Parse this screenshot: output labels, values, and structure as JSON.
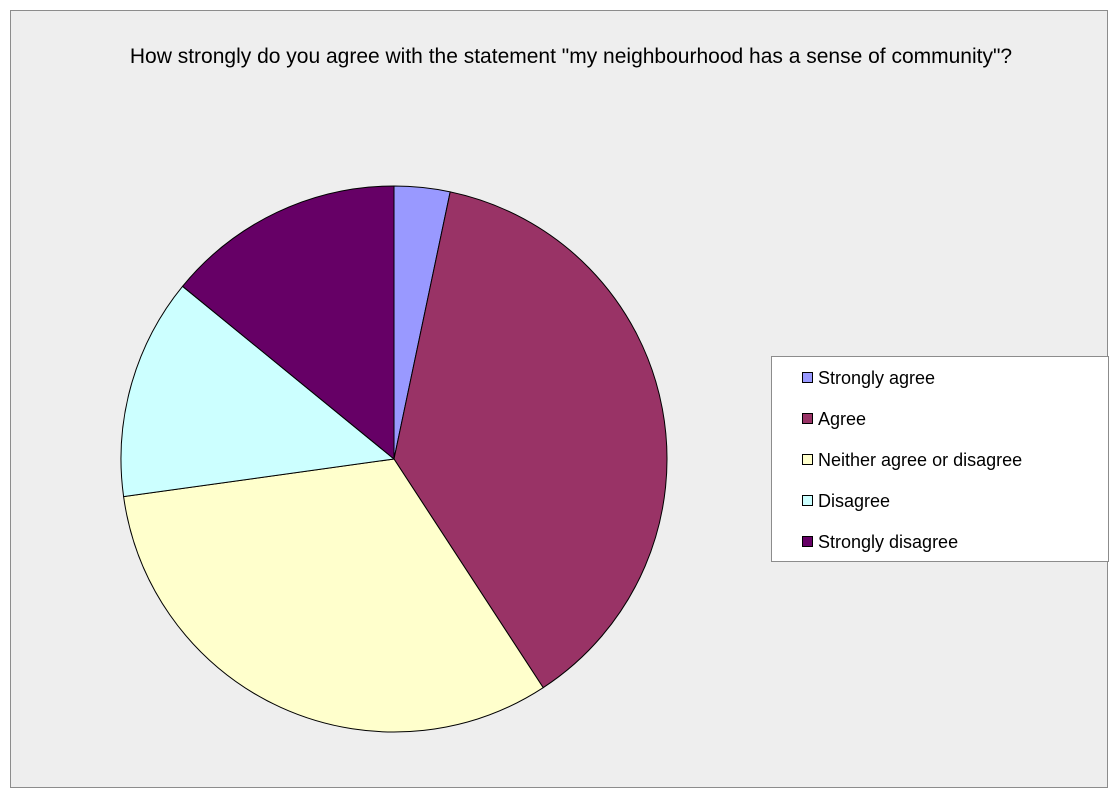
{
  "chart_data": {
    "type": "pie",
    "title": "How strongly do you agree with the statement \"my neighbourhood has a sense of community\"?",
    "categories": [
      "Strongly agree",
      "Agree",
      "Neither agree or disagree",
      "Disagree",
      "Strongly disagree"
    ],
    "values": [
      3.3,
      37.5,
      32.0,
      13.1,
      14.1
    ],
    "unit": "percent (estimated share of pie)",
    "colors": [
      "#9999ff",
      "#993366",
      "#ffffcc",
      "#ccffff",
      "#660066"
    ],
    "legend_position": "right",
    "start_angle": "12 o'clock, clockwise"
  }
}
